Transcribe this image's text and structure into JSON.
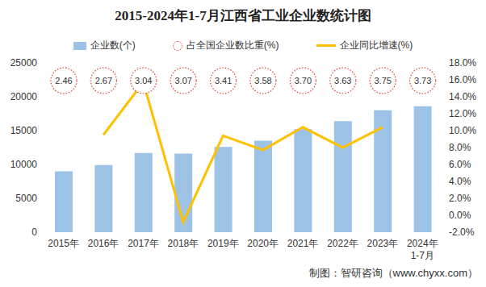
{
  "chart_data": {
    "type": "bar",
    "title": "2015-2024年1-7月江西省工业企业数统计图",
    "source": "制图：智研咨询（www.chyxx.com）",
    "categories": [
      "2015年",
      "2016年",
      "2017年",
      "2018年",
      "2019年",
      "2020年",
      "2021年",
      "2022年",
      "2023年",
      "2024年\n1-7月"
    ],
    "series": [
      {
        "name": "企业数(个)",
        "type": "bar",
        "color": "#9cc3e6",
        "axis": "y",
        "values": [
          9000,
          9900,
          11700,
          11600,
          12600,
          13500,
          15200,
          16400,
          18000,
          18600
        ]
      },
      {
        "name": "占全国企业数比重(%)",
        "type": "text",
        "marker": "circle",
        "line_style": "dotted",
        "color": "#e03c31",
        "data_labels": true,
        "values": [
          2.46,
          2.67,
          3.04,
          3.07,
          3.41,
          3.58,
          3.7,
          3.63,
          3.75,
          3.73
        ],
        "value_labels": [
          "2.46",
          "2.67",
          "3.04",
          "3.07",
          "3.41",
          "3.58",
          "3.70",
          "3.63",
          "3.75",
          "3.73"
        ]
      },
      {
        "name": "企业同比增速(%)",
        "type": "line",
        "color": "#ffc000",
        "axis": "y2",
        "values": [
          null,
          9.5,
          15.7,
          -0.8,
          9.4,
          7.7,
          10.4,
          8.0,
          10.4,
          null
        ]
      }
    ],
    "ylim": [
      0,
      25000
    ],
    "yticks": [
      0,
      5000,
      10000,
      15000,
      20000,
      25000
    ],
    "y2lim": [
      -2,
      18
    ],
    "y2ticks": [
      {
        "value": -2,
        "label": "-2.0%"
      },
      {
        "value": 0,
        "label": "0.0%"
      },
      {
        "value": 2,
        "label": "2.0%"
      },
      {
        "value": 4,
        "label": "4.0%"
      },
      {
        "value": 6,
        "label": "6.0%"
      },
      {
        "value": 8,
        "label": "8.0%"
      },
      {
        "value": 10,
        "label": "10.0%"
      },
      {
        "value": 12,
        "label": "12.0%"
      },
      {
        "value": 14,
        "label": "14.0%"
      },
      {
        "value": 16,
        "label": "16.0%"
      },
      {
        "value": 18,
        "label": "18.0%"
      }
    ],
    "grid": false,
    "legend": "top"
  }
}
